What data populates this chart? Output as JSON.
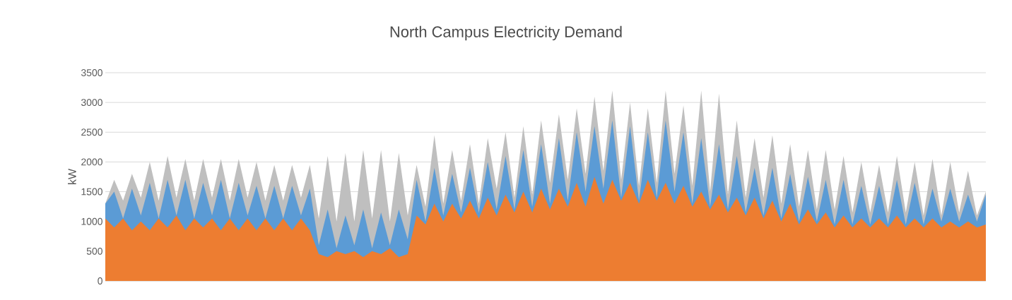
{
  "chart_data": {
    "type": "area",
    "title": "North Campus Electricity Demand",
    "ylabel": "kW",
    "categories": [
      null,
      null,
      null,
      null,
      null,
      null,
      null,
      null,
      null,
      null,
      null,
      null,
      null,
      null,
      null,
      null,
      null,
      null,
      null,
      null,
      null,
      null,
      null,
      null,
      null,
      null,
      null,
      null,
      null,
      null,
      null,
      null,
      null,
      null,
      null,
      null,
      null,
      null,
      null,
      null,
      null,
      null,
      null,
      null,
      null,
      null,
      null,
      null,
      null,
      null,
      null,
      null,
      null,
      null,
      null,
      null,
      null,
      null,
      null,
      null,
      null,
      null,
      null,
      null,
      null,
      null,
      null,
      null,
      null,
      null,
      null,
      null,
      null,
      null,
      null,
      null,
      null,
      null,
      null,
      null,
      null,
      null,
      null,
      null,
      null,
      null,
      null,
      null,
      null,
      null,
      null,
      null,
      null,
      null,
      null,
      null,
      null,
      null,
      null,
      null
    ],
    "ylim": [
      0,
      3500
    ],
    "yticks": [
      0,
      500,
      1000,
      1500,
      2000,
      2500,
      3000,
      3500
    ],
    "grid": "y",
    "series": [
      {
        "color": "#bfbfbf",
        "values": [
          1300,
          1700,
          1350,
          1800,
          1400,
          2000,
          1350,
          2100,
          1400,
          2050,
          1350,
          2050,
          1400,
          2050,
          1350,
          2050,
          1400,
          2000,
          1350,
          1950,
          1350,
          1950,
          1400,
          1950,
          1050,
          2100,
          1000,
          2150,
          1000,
          2200,
          1050,
          2200,
          1000,
          2150,
          1100,
          1950,
          1250,
          2450,
          1300,
          2200,
          1350,
          2300,
          1300,
          2400,
          1550,
          2500,
          1400,
          2600,
          1450,
          2700,
          1650,
          2800,
          1700,
          2900,
          1800,
          3100,
          1850,
          3200,
          1700,
          3000,
          1600,
          2900,
          1650,
          3200,
          1800,
          2950,
          1600,
          3200,
          1500,
          3150,
          1450,
          2700,
          1400,
          2400,
          1400,
          2450,
          1300,
          2300,
          1250,
          2200,
          1200,
          2200,
          1200,
          2100,
          1150,
          2000,
          1150,
          1950,
          1150,
          2100,
          1150,
          2000,
          1100,
          2050,
          1100,
          2000,
          1150,
          1850,
          1100,
          1500
        ]
      },
      {
        "color": "#5b9bd5",
        "values": [
          1300,
          1500,
          1050,
          1550,
          1100,
          1650,
          1050,
          1700,
          1100,
          1700,
          1050,
          1650,
          1100,
          1700,
          1050,
          1650,
          1100,
          1600,
          1050,
          1600,
          1050,
          1600,
          1100,
          1550,
          600,
          1200,
          550,
          1100,
          600,
          1200,
          550,
          1150,
          600,
          1200,
          700,
          1700,
          1000,
          1900,
          1100,
          1800,
          1150,
          1900,
          1150,
          2000,
          1200,
          2100,
          1200,
          2200,
          1250,
          2300,
          1300,
          2400,
          1350,
          2500,
          1500,
          2600,
          1550,
          2700,
          1400,
          2600,
          1350,
          2500,
          1400,
          2700,
          1500,
          2500,
          1300,
          2400,
          1250,
          2300,
          1200,
          2100,
          1150,
          1900,
          1100,
          1900,
          1050,
          1800,
          1000,
          1750,
          1000,
          1700,
          950,
          1700,
          950,
          1600,
          950,
          1600,
          950,
          1700,
          950,
          1650,
          950,
          1550,
          1000,
          1550,
          1000,
          1450,
          1000,
          1450
        ]
      },
      {
        "color": "#ed7d31",
        "values": [
          1050,
          900,
          1050,
          850,
          1000,
          850,
          1050,
          900,
          1100,
          850,
          1050,
          900,
          1050,
          850,
          1050,
          850,
          1050,
          850,
          1050,
          850,
          1050,
          850,
          1050,
          850,
          450,
          400,
          500,
          450,
          500,
          400,
          500,
          450,
          550,
          400,
          450,
          1100,
          950,
          1300,
          1000,
          1300,
          1050,
          1350,
          1050,
          1400,
          1100,
          1450,
          1150,
          1500,
          1150,
          1550,
          1200,
          1550,
          1250,
          1650,
          1250,
          1750,
          1300,
          1700,
          1350,
          1650,
          1300,
          1700,
          1350,
          1650,
          1300,
          1600,
          1250,
          1500,
          1200,
          1450,
          1150,
          1400,
          1100,
          1400,
          1050,
          1350,
          1000,
          1300,
          950,
          1200,
          950,
          1150,
          900,
          1100,
          900,
          1050,
          900,
          1050,
          900,
          1100,
          900,
          1050,
          900,
          1050,
          900,
          1000,
          900,
          1000,
          900,
          950
        ]
      }
    ]
  }
}
